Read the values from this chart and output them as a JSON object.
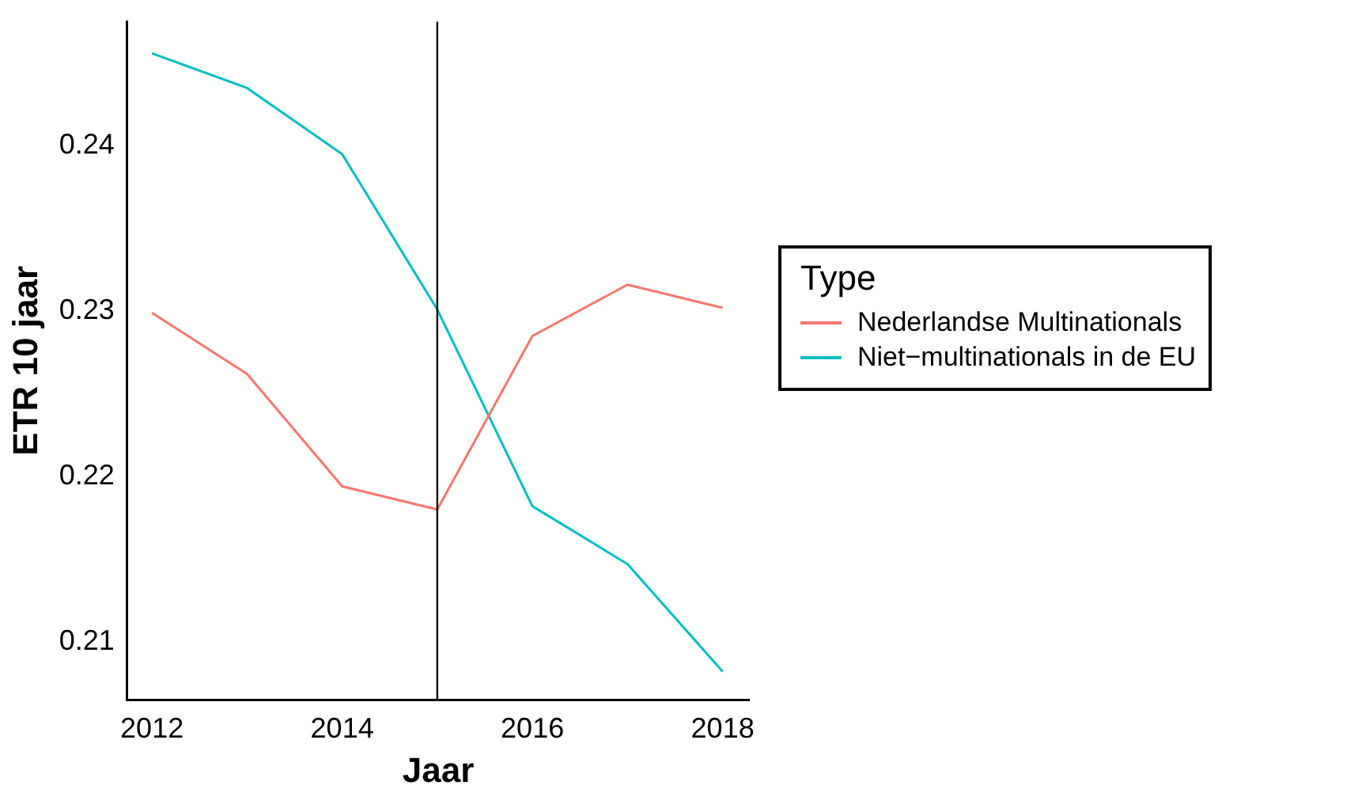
{
  "chart_data": {
    "type": "line",
    "xlabel": "Jaar",
    "ylabel": "ETR 10 jaar",
    "legend_title": "Type",
    "legend": "right",
    "grid": false,
    "x": [
      2012,
      2013,
      2014,
      2015,
      2016,
      2017,
      2018
    ],
    "xlim": [
      2011.74,
      2018.28
    ],
    "xticks": [
      2012,
      2014,
      2016,
      2018
    ],
    "ylim": [
      0.2065,
      0.2475
    ],
    "yticks": [
      0.21,
      0.22,
      0.23,
      0.24
    ],
    "series": [
      {
        "name": "Nederlandse Multinationals",
        "color": "#f8766d",
        "values": [
          0.2299,
          0.2262,
          0.2194,
          0.218,
          0.2285,
          0.2316,
          0.2302
        ]
      },
      {
        "name": "Niet−multinationals in de EU",
        "color": "#00bfc4",
        "values": [
          0.2456,
          0.2435,
          0.2395,
          0.2301,
          0.2182,
          0.2147,
          0.2082
        ]
      }
    ],
    "ref_lines": [
      {
        "axis": "x",
        "value": 2015,
        "color": "#000000"
      }
    ]
  }
}
